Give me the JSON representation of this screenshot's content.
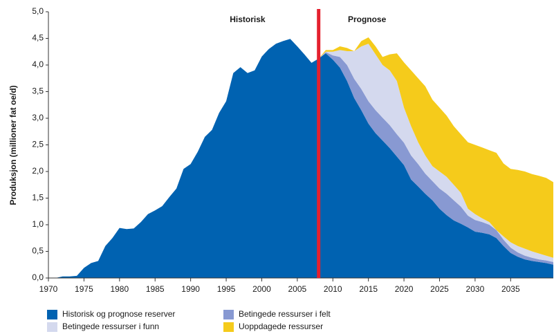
{
  "chart_data": {
    "type": "stacked_area",
    "y_label": "Produksjon (millioner fat oe/d)",
    "annotations": [
      {
        "text": "Historisk",
        "x": 1998
      },
      {
        "text": "Prognose",
        "x": 2014.8
      }
    ],
    "divider": {
      "x": 2008,
      "color": "#e4202e"
    },
    "x": [
      1971,
      1972,
      1973,
      1974,
      1975,
      1976,
      1977,
      1978,
      1979,
      1980,
      1981,
      1982,
      1983,
      1984,
      1985,
      1986,
      1987,
      1988,
      1989,
      1990,
      1991,
      1992,
      1993,
      1994,
      1995,
      1996,
      1997,
      1998,
      1999,
      2000,
      2001,
      2002,
      2003,
      2004,
      2005,
      2006,
      2007,
      2008,
      2009,
      2010,
      2011,
      2012,
      2013,
      2014,
      2015,
      2016,
      2017,
      2018,
      2019,
      2020,
      2021,
      2022,
      2023,
      2024,
      2025,
      2026,
      2027,
      2028,
      2029,
      2030,
      2031,
      2032,
      2033,
      2034,
      2035,
      2036,
      2037,
      2038,
      2039,
      2040,
      2041
    ],
    "series": [
      {
        "name": "Historisk og prognose reserver",
        "color": "#0062b1",
        "values": [
          0,
          0.03,
          0.03,
          0.04,
          0.19,
          0.28,
          0.32,
          0.6,
          0.75,
          0.94,
          0.92,
          0.93,
          1.05,
          1.2,
          1.27,
          1.35,
          1.52,
          1.68,
          2.05,
          2.14,
          2.37,
          2.65,
          2.78,
          3.1,
          3.32,
          3.85,
          3.96,
          3.85,
          3.9,
          4.16,
          4.3,
          4.4,
          4.45,
          4.49,
          4.35,
          4.2,
          4.04,
          4.12,
          4.22,
          4.1,
          3.95,
          3.7,
          3.38,
          3.15,
          2.9,
          2.72,
          2.58,
          2.44,
          2.28,
          2.12,
          1.85,
          1.72,
          1.58,
          1.46,
          1.3,
          1.18,
          1.08,
          1.02,
          0.95,
          0.87,
          0.85,
          0.82,
          0.75,
          0.6,
          0.47,
          0.4,
          0.35,
          0.32,
          0.3,
          0.28,
          0.25
        ]
      },
      {
        "name": "Betingede ressurser i felt",
        "color": "#8899d2",
        "values": [
          null,
          null,
          null,
          null,
          null,
          null,
          null,
          null,
          null,
          null,
          null,
          null,
          null,
          null,
          null,
          null,
          null,
          null,
          null,
          null,
          null,
          null,
          null,
          null,
          null,
          null,
          null,
          null,
          null,
          null,
          null,
          null,
          null,
          null,
          null,
          null,
          null,
          0,
          0.02,
          0.08,
          0.2,
          0.3,
          0.36,
          0.4,
          0.42,
          0.43,
          0.43,
          0.43,
          0.42,
          0.42,
          0.45,
          0.42,
          0.38,
          0.36,
          0.38,
          0.4,
          0.38,
          0.32,
          0.22,
          0.22,
          0.2,
          0.18,
          0.15,
          0.12,
          0.1,
          0.08,
          0.07,
          0.06,
          0.05,
          0.05,
          0.05
        ]
      },
      {
        "name": "Betingede ressurser i funn",
        "color": "#d4d9ee",
        "values": [
          null,
          null,
          null,
          null,
          null,
          null,
          null,
          null,
          null,
          null,
          null,
          null,
          null,
          null,
          null,
          null,
          null,
          null,
          null,
          null,
          null,
          null,
          null,
          null,
          null,
          null,
          null,
          null,
          null,
          null,
          null,
          null,
          null,
          null,
          null,
          null,
          null,
          0,
          0.01,
          0.07,
          0.13,
          0.26,
          0.52,
          0.8,
          1.08,
          1.05,
          0.99,
          1.03,
          1.0,
          0.66,
          0.55,
          0.41,
          0.34,
          0.28,
          0.32,
          0.32,
          0.29,
          0.26,
          0.13,
          0.11,
          0.07,
          0.05,
          0,
          0.06,
          0.1,
          0.12,
          0.13,
          0.12,
          0.11,
          0.09,
          0.08
        ]
      },
      {
        "name": "Uoppdagede ressurser",
        "color": "#f5cb1b",
        "values": [
          null,
          null,
          null,
          null,
          null,
          null,
          null,
          null,
          null,
          null,
          null,
          null,
          null,
          null,
          null,
          null,
          null,
          null,
          null,
          null,
          null,
          null,
          null,
          null,
          null,
          null,
          null,
          null,
          null,
          null,
          null,
          null,
          null,
          null,
          null,
          null,
          null,
          0,
          0.03,
          0.03,
          0.07,
          0.06,
          0,
          0.1,
          0.12,
          0.15,
          0.15,
          0.3,
          0.52,
          0.85,
          1.05,
          1.2,
          1.3,
          1.25,
          1.2,
          1.15,
          1.1,
          1.1,
          1.25,
          1.3,
          1.33,
          1.35,
          1.45,
          1.37,
          1.38,
          1.43,
          1.45,
          1.45,
          1.46,
          1.46,
          1.42
        ]
      }
    ],
    "xlim": [
      1970,
      2041
    ],
    "xticks": [
      1970,
      1975,
      1980,
      1985,
      1990,
      1995,
      2000,
      2005,
      2010,
      2015,
      2020,
      2025,
      2030,
      2035
    ],
    "ylim": [
      0,
      5
    ],
    "yticks": [
      {
        "value": 0,
        "label": "0,0"
      },
      {
        "value": 0.5,
        "label": "0,5"
      },
      {
        "value": 1,
        "label": "1,0"
      },
      {
        "value": 1.5,
        "label": "1,5"
      },
      {
        "value": 2,
        "label": "2,0"
      },
      {
        "value": 2.5,
        "label": "2,5"
      },
      {
        "value": 3,
        "label": "3,0"
      },
      {
        "value": 3.5,
        "label": "3,5"
      },
      {
        "value": 4,
        "label": "4,0"
      },
      {
        "value": 4.5,
        "label": "4,5"
      },
      {
        "value": 5,
        "label": "5,0"
      }
    ],
    "legend": "bottom"
  }
}
